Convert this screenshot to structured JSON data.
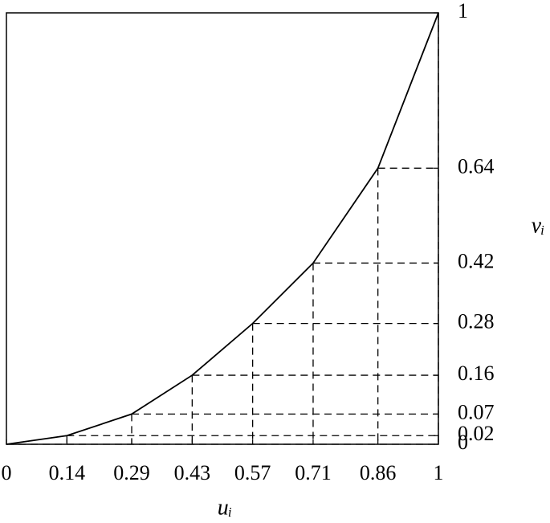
{
  "chart_data": {
    "type": "line",
    "x": [
      0,
      0.14,
      0.29,
      0.43,
      0.57,
      0.71,
      0.86,
      1
    ],
    "series": [
      {
        "name": null,
        "color": "#000000",
        "values": [
          0,
          0.02,
          0.07,
          0.16,
          0.28,
          0.42,
          0.64,
          1
        ]
      }
    ],
    "xlabel": "uᵢ",
    "ylabel": "vᵢ",
    "xlim": [
      0,
      1
    ],
    "ylim": [
      0,
      1
    ],
    "xticks": [
      0,
      0.14,
      0.29,
      0.43,
      0.57,
      0.71,
      0.86,
      1
    ],
    "yticks": [
      0,
      0.02,
      0.07,
      0.16,
      0.28,
      0.42,
      0.64,
      1
    ],
    "guides": true
  }
}
